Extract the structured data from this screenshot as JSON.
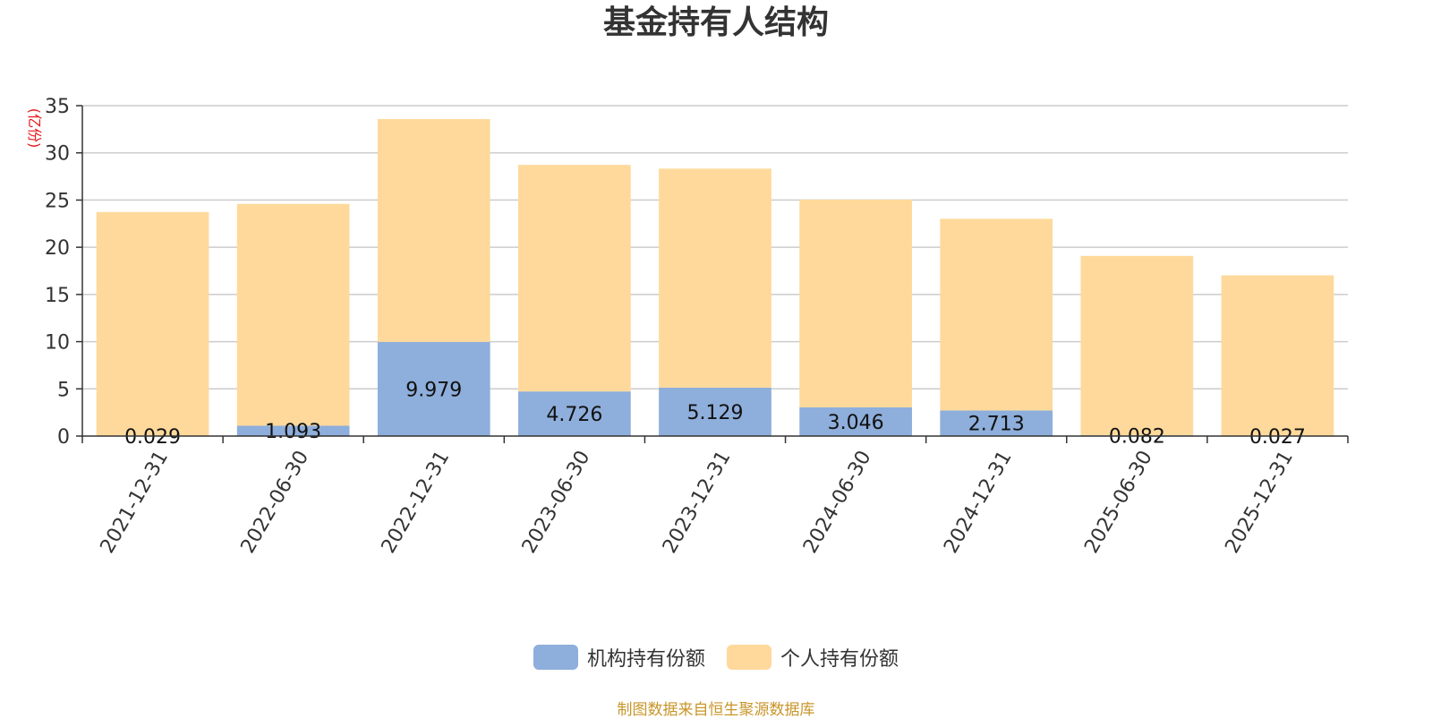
{
  "chart_data": {
    "type": "bar",
    "stacked": true,
    "title": "基金持有人结构",
    "ylabel": "(亿份)",
    "ylim": [
      0,
      35
    ],
    "yticks": [
      0,
      5,
      10,
      15,
      20,
      25,
      30,
      35
    ],
    "grid": true,
    "legend_position": "bottom",
    "categories": [
      "2021-12-31",
      "2022-06-30",
      "2022-12-31",
      "2023-06-30",
      "2023-12-31",
      "2024-06-30",
      "2024-12-31",
      "2025-06-30",
      "2025-12-31"
    ],
    "series": [
      {
        "name": "机构持有份额",
        "color": "#8eaedb",
        "values": [
          0.029,
          1.093,
          9.979,
          4.726,
          5.129,
          3.046,
          2.713,
          0.082,
          0.027
        ],
        "labels": [
          "0.029",
          "1.093",
          "9.979",
          "4.726",
          "5.129",
          "3.046",
          "2.713",
          "0.082",
          "0.027"
        ]
      },
      {
        "name": "个人持有份额",
        "color": "#fed99b",
        "values": [
          23.7,
          23.5,
          23.6,
          24.0,
          23.2,
          22.0,
          20.3,
          19.0,
          17.0
        ]
      }
    ]
  },
  "footer": {
    "source": "制图数据来自恒生聚源数据库"
  }
}
